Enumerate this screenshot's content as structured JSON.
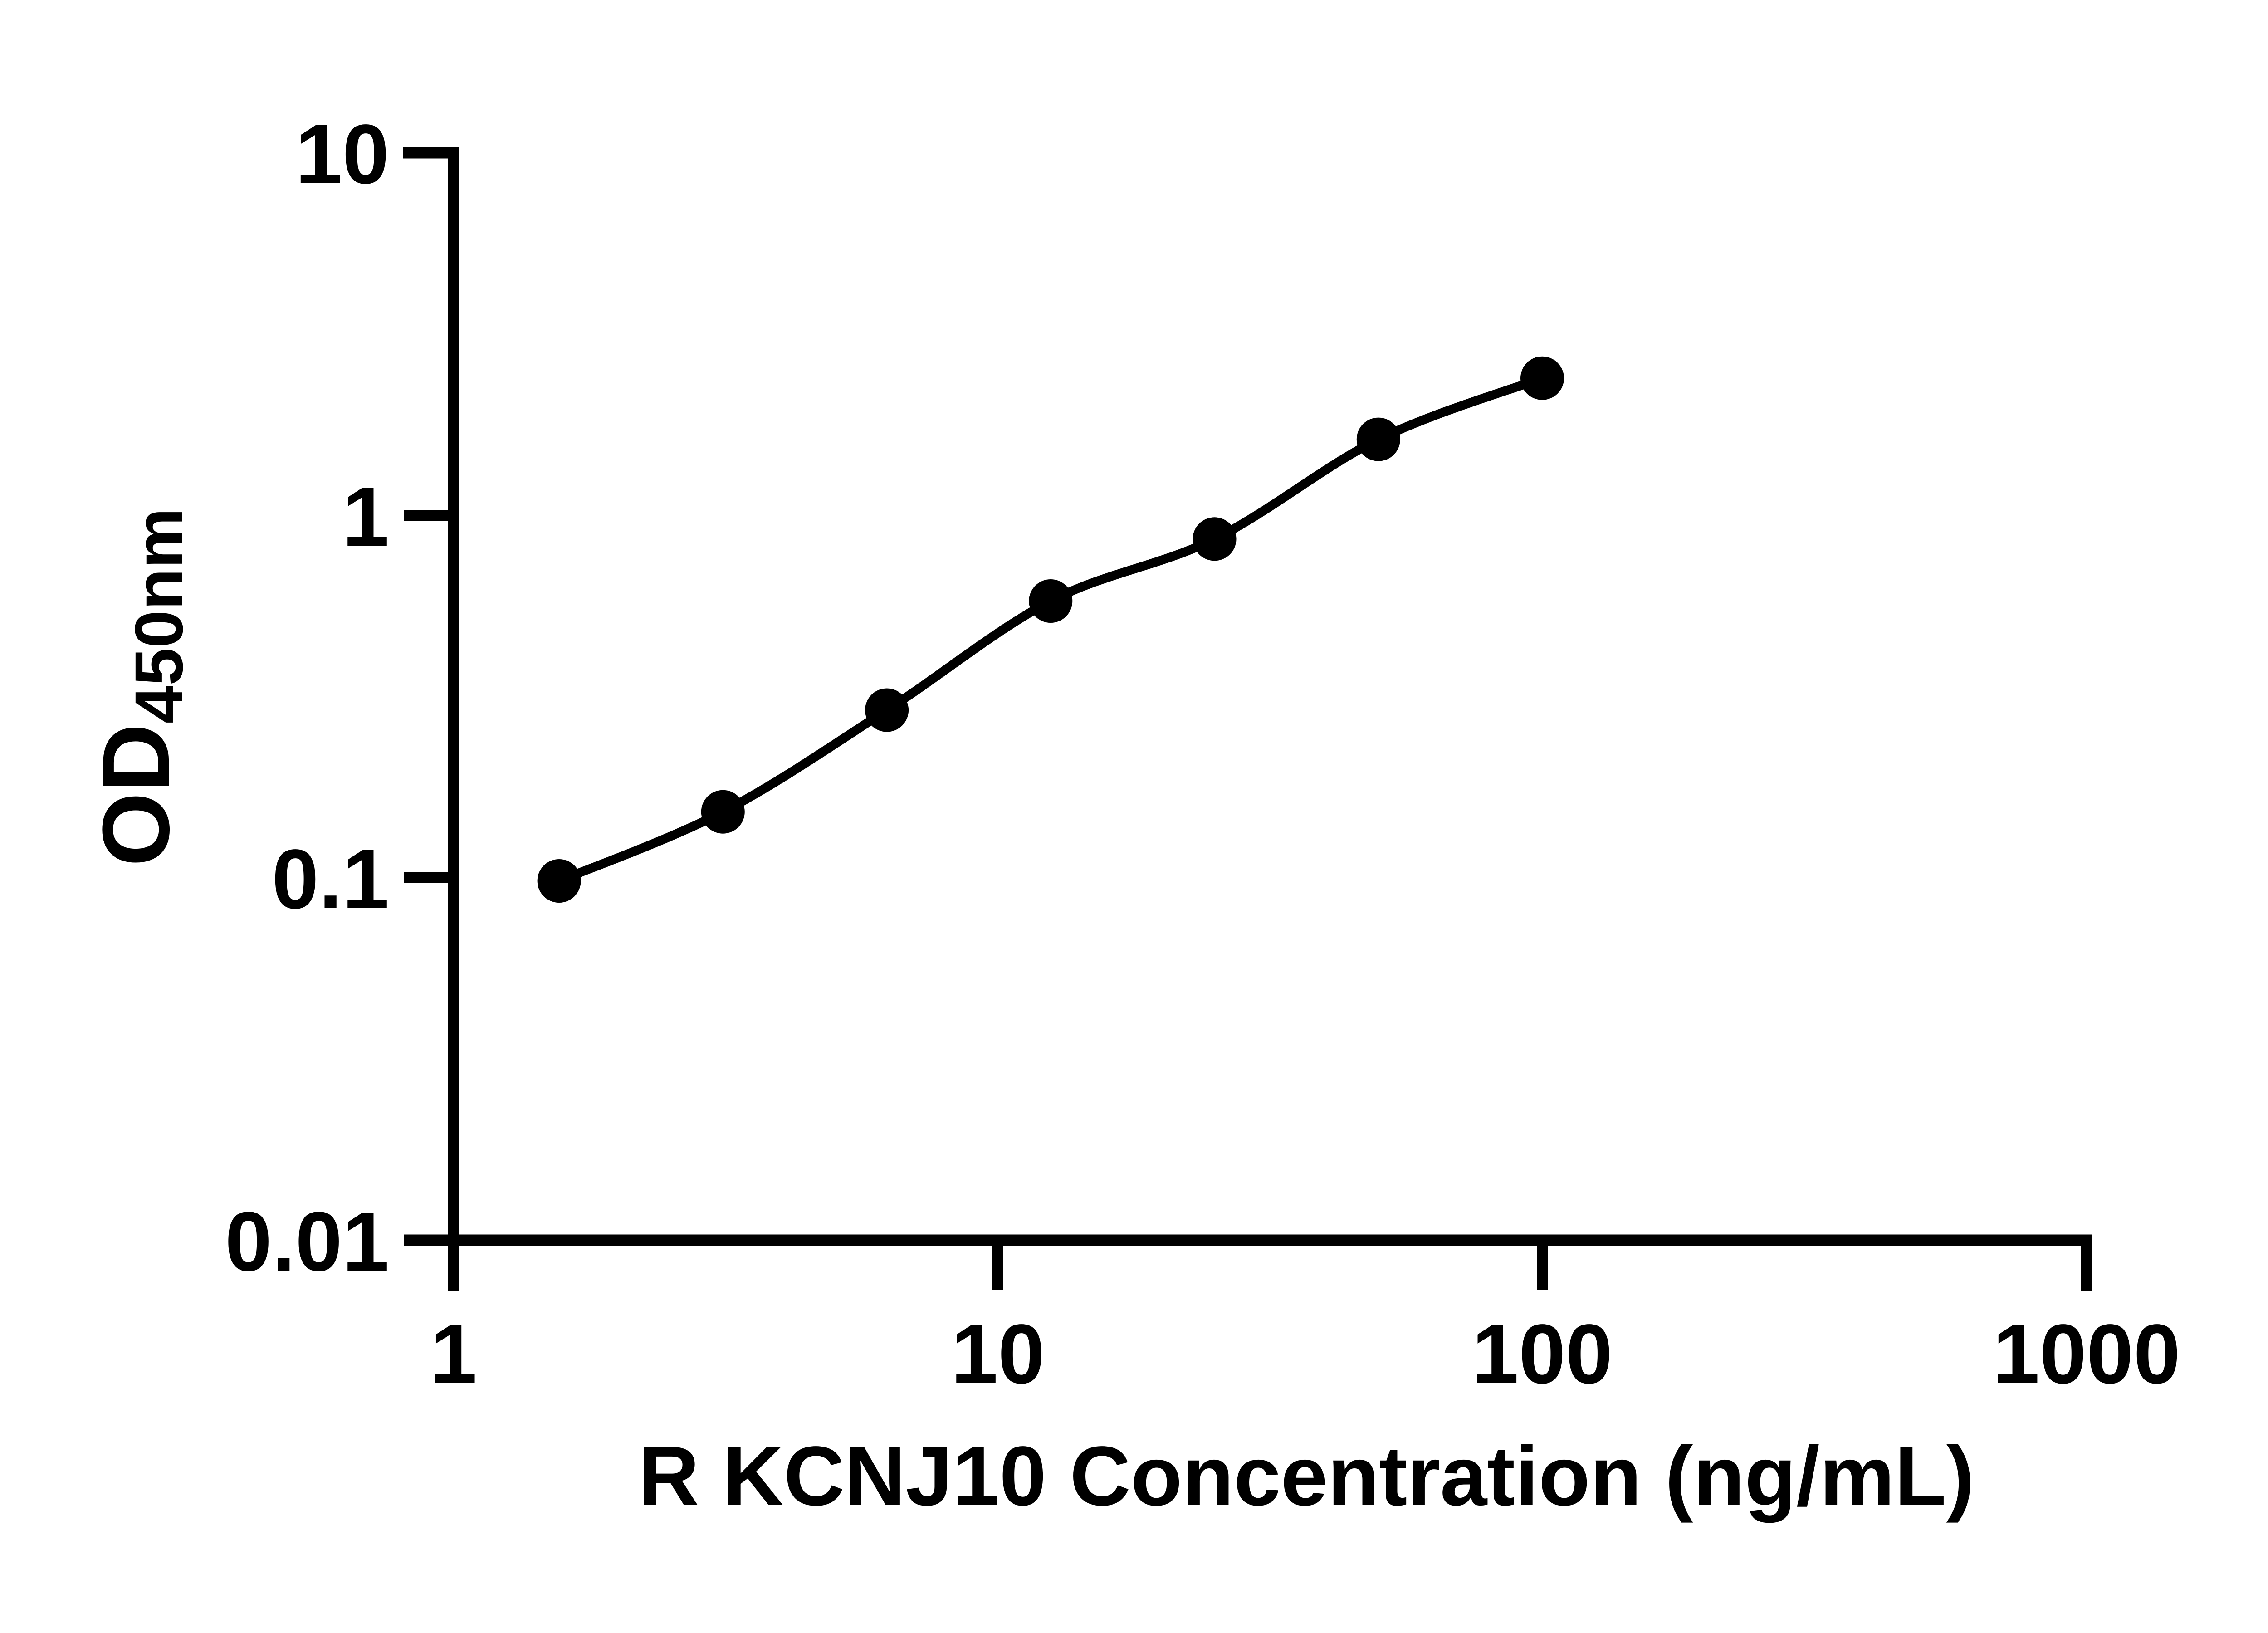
{
  "chart_data": {
    "type": "scatter",
    "title": "",
    "xlabel": "R KCNJ10 Concentration (ng/mL)",
    "ylabel": "OD",
    "ylabel_subscript": "450nm",
    "x_scale": "log",
    "y_scale": "log",
    "xlim": [
      1,
      1000
    ],
    "ylim": [
      0.01,
      10
    ],
    "x_ticks": [
      "1",
      "10",
      "100",
      "1000"
    ],
    "y_ticks": [
      "0.01",
      "0.1",
      "1",
      "10"
    ],
    "x": [
      1.5625,
      3.125,
      6.25,
      12.5,
      25,
      50,
      100
    ],
    "y": [
      0.098,
      0.152,
      0.29,
      0.58,
      0.86,
      1.62,
      2.39
    ],
    "marker": "filled-circle",
    "grid": "off",
    "legend": "none",
    "colors": {
      "axis": "#000000",
      "text": "#000000",
      "marker": "#000000",
      "line": "#000000",
      "background": "#ffffff"
    }
  }
}
